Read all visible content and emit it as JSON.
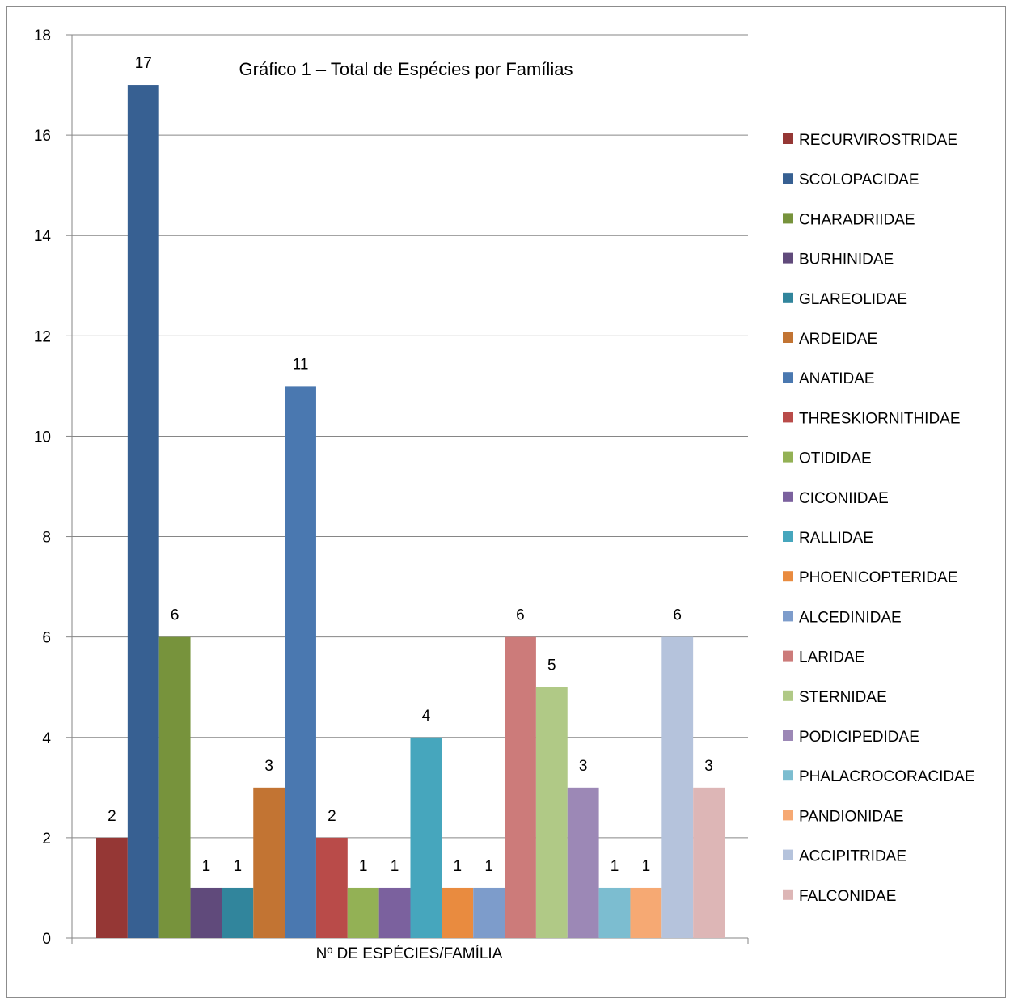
{
  "chart_data": {
    "type": "bar",
    "title": "Gráfico 1 – Total de Espécies por Famílias",
    "xlabel": "Nº DE ESPÉCIES/FAMÍLIA",
    "ylabel": "",
    "ylim": [
      0,
      18
    ],
    "yticks": [
      0,
      2,
      4,
      6,
      8,
      10,
      12,
      14,
      16,
      18
    ],
    "grid": true,
    "legend_position": "right",
    "series": [
      {
        "name": "RECURVIROSTRIDAE",
        "value": 2,
        "color": "#953735"
      },
      {
        "name": "SCOLOPACIDAE",
        "value": 17,
        "color": "#376092"
      },
      {
        "name": "CHARADRIIDAE",
        "value": 6,
        "color": "#77933c"
      },
      {
        "name": "BURHINIDAE",
        "value": 1,
        "color": "#604a7b"
      },
      {
        "name": "GLAREOLIDAE",
        "value": 1,
        "color": "#31859c"
      },
      {
        "name": "ARDEIDAE",
        "value": 3,
        "color": "#c27433"
      },
      {
        "name": "ANATIDAE",
        "value": 11,
        "color": "#4a78b0"
      },
      {
        "name": "THRESKIORNITHIDAE",
        "value": 2,
        "color": "#b94b49"
      },
      {
        "name": "OTIDIDAE",
        "value": 1,
        "color": "#93b155"
      },
      {
        "name": "CICONIIDAE",
        "value": 1,
        "color": "#7b619e"
      },
      {
        "name": "RALLIDAE",
        "value": 4,
        "color": "#46a6bd"
      },
      {
        "name": "PHOENICOPTERIDAE",
        "value": 1,
        "color": "#e98b3f"
      },
      {
        "name": "ALCEDINIDAE",
        "value": 1,
        "color": "#7d9ccb"
      },
      {
        "name": "LARIDAE",
        "value": 6,
        "color": "#cc7b7a"
      },
      {
        "name": "STERNIDAE",
        "value": 5,
        "color": "#b0c986"
      },
      {
        "name": "PODICIPEDIDAE",
        "value": 3,
        "color": "#9c88b6"
      },
      {
        "name": "PHALACROCORACIDAE",
        "value": 1,
        "color": "#7cbdd0"
      },
      {
        "name": "PANDIONIDAE",
        "value": 1,
        "color": "#f6a973"
      },
      {
        "name": "ACCIPITRIDAE",
        "value": 6,
        "color": "#b5c3dc"
      },
      {
        "name": "FALCONIDAE",
        "value": 3,
        "color": "#ddb6b6"
      }
    ]
  }
}
